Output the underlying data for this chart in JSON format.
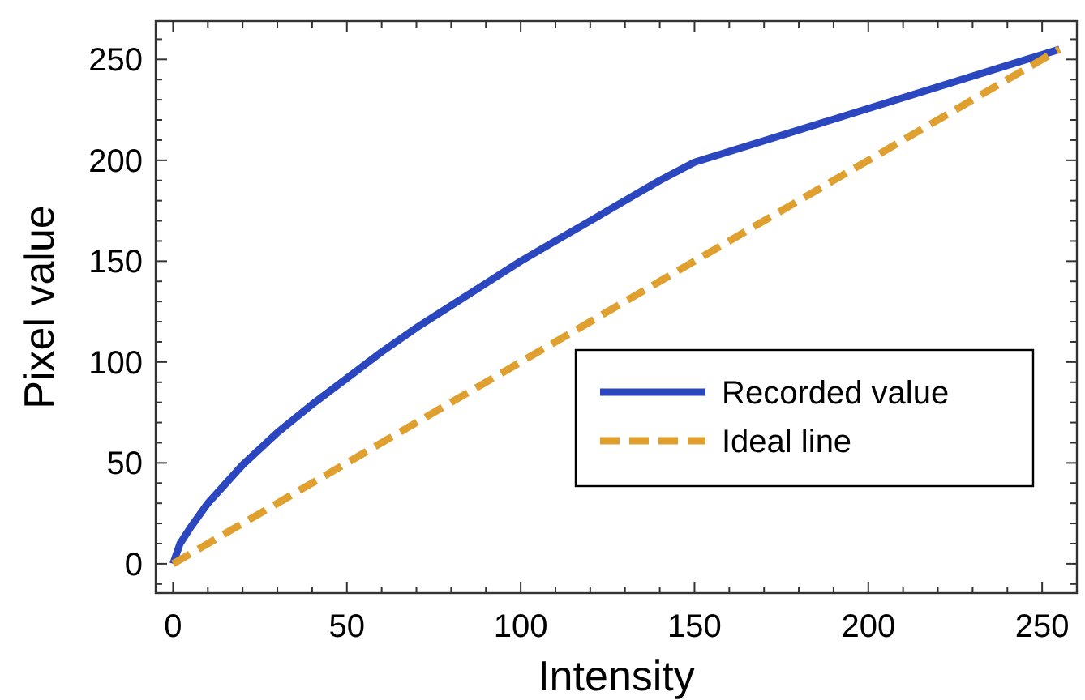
{
  "chart_data": {
    "type": "line",
    "xlabel": "Intensity",
    "ylabel": "Pixel value",
    "xlim": [
      -5,
      260
    ],
    "ylim": [
      -14.5,
      269
    ],
    "xticks": [
      0,
      {
        "value": 10,
        "label": null
      },
      {
        "value": 20,
        "label": null
      },
      {
        "value": 30,
        "label": null
      },
      {
        "value": 40,
        "label": null
      },
      50,
      {
        "value": 60,
        "label": null
      },
      {
        "value": 70,
        "label": null
      },
      {
        "value": 80,
        "label": null
      },
      {
        "value": 90,
        "label": null
      },
      100,
      {
        "value": 110,
        "label": null
      },
      {
        "value": 120,
        "label": null
      },
      {
        "value": 130,
        "label": null
      },
      {
        "value": 140,
        "label": null
      },
      150,
      {
        "value": 160,
        "label": null
      },
      {
        "value": 170,
        "label": null
      },
      {
        "value": 180,
        "label": null
      },
      {
        "value": 190,
        "label": null
      },
      200,
      {
        "value": 210,
        "label": null
      },
      {
        "value": 220,
        "label": null
      },
      {
        "value": 230,
        "label": null
      },
      {
        "value": 240,
        "label": null
      },
      250
    ],
    "yticks": [
      {
        "value": -10,
        "label": null
      },
      0,
      {
        "value": 10,
        "label": null
      },
      {
        "value": 20,
        "label": null
      },
      {
        "value": 30,
        "label": null
      },
      {
        "value": 40,
        "label": null
      },
      50,
      {
        "value": 60,
        "label": null
      },
      {
        "value": 70,
        "label": null
      },
      {
        "value": 80,
        "label": null
      },
      {
        "value": 90,
        "label": null
      },
      100,
      {
        "value": 110,
        "label": null
      },
      {
        "value": 120,
        "label": null
      },
      {
        "value": 130,
        "label": null
      },
      {
        "value": 140,
        "label": null
      },
      150,
      {
        "value": 160,
        "label": null
      },
      {
        "value": 170,
        "label": null
      },
      {
        "value": 180,
        "label": null
      },
      {
        "value": 190,
        "label": null
      },
      200,
      {
        "value": 210,
        "label": null
      },
      {
        "value": 220,
        "label": null
      },
      {
        "value": 230,
        "label": null
      },
      {
        "value": 240,
        "label": null
      },
      250,
      {
        "value": 260,
        "label": null
      }
    ],
    "grid": false,
    "legend": "bottom right",
    "marker": "none",
    "series": [
      {
        "name": "Recorded value",
        "color": "#2b47bf",
        "line_style": "solid",
        "x": [
          0,
          2,
          5,
          10,
          20,
          30,
          40,
          50,
          60,
          70,
          80,
          90,
          100,
          110,
          120,
          130,
          140,
          150,
          255
        ],
        "values": [
          0,
          10,
          18,
          30,
          49,
          65,
          79,
          92,
          105,
          117,
          128,
          139,
          150,
          160,
          170,
          180,
          190,
          199,
          255
        ]
      },
      {
        "name": "Ideal line",
        "color": "#e0a030",
        "line_style": "dashed",
        "x": [
          0,
          255
        ],
        "values": [
          0,
          255
        ]
      }
    ]
  }
}
